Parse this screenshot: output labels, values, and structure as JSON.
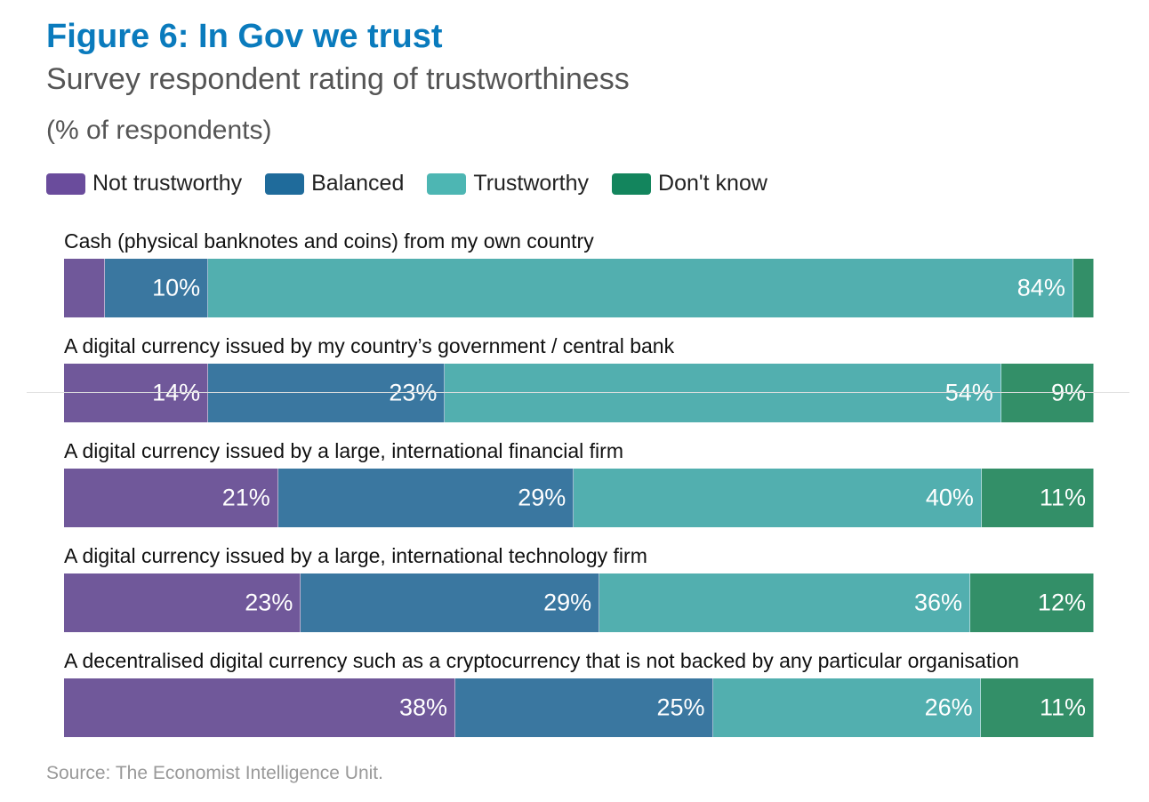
{
  "title": "Figure 6: In Gov we trust",
  "subtitle": "Survey respondent rating of trustworthiness",
  "unit": "(% of respondents)",
  "source": "Source: The Economist Intelligence Unit.",
  "chart_data": {
    "type": "bar",
    "orientation": "horizontal-stacked",
    "title": "Figure 6: In Gov we trust",
    "subtitle": "Survey respondent rating of trustworthiness",
    "unit": "(% of respondents)",
    "legend_placement": "top-left",
    "grid": false,
    "xlim": [
      0,
      100
    ],
    "categories": [
      "Cash (physical banknotes and coins) from my own country",
      "A digital currency issued by my country’s government / central bank",
      "A digital currency issued by a large, international financial firm",
      "A digital currency issued by a large, international technology firm",
      "A decentralised digital currency such as a cryptocurrency that is not backed by any particular organisation"
    ],
    "series": [
      {
        "name": "Not trustworthy",
        "color": "#70589a",
        "legend_color": "#6a4c9c",
        "values": [
          4,
          14,
          21,
          23,
          38
        ],
        "labels": [
          "",
          "14%",
          "21%",
          "23%",
          "38%"
        ]
      },
      {
        "name": "Balanced",
        "color": "#3a77a0",
        "legend_color": "#1f6b9b",
        "values": [
          10,
          23,
          29,
          29,
          25
        ],
        "labels": [
          "10%",
          "23%",
          "29%",
          "29%",
          "25%"
        ]
      },
      {
        "name": "Trustworthy",
        "color": "#52afaf",
        "legend_color": "#4db6b3",
        "values": [
          84,
          54,
          40,
          36,
          26
        ],
        "labels": [
          "84%",
          "54%",
          "40%",
          "36%",
          "26%"
        ]
      },
      {
        "name": "Don't know",
        "color": "#338f68",
        "legend_color": "#13855d",
        "values": [
          2,
          9,
          11,
          12,
          11
        ],
        "labels": [
          "",
          "9%",
          "11%",
          "12%",
          "11%"
        ]
      }
    ]
  }
}
